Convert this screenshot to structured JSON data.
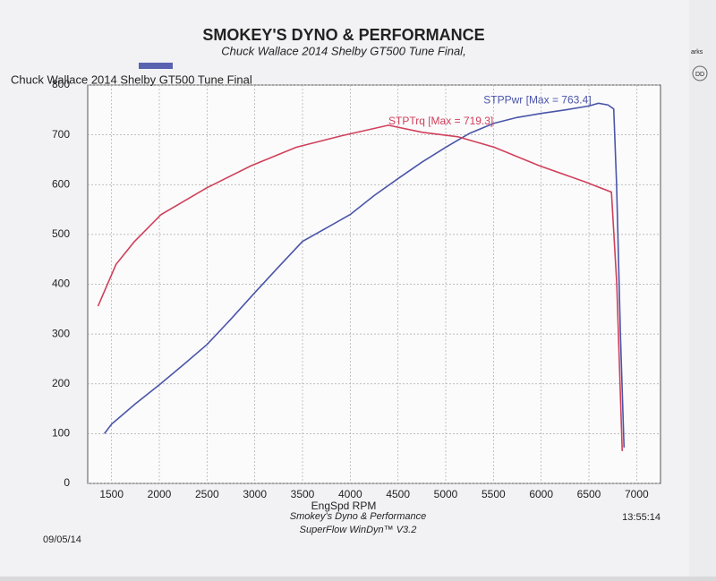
{
  "chart_data": {
    "type": "line",
    "title": "SMOKEY'S DYNO & PERFORMANCE",
    "subtitle": "Chuck Wallace 2014 Shelby GT500 Tune Final,",
    "legend_label": "Chuck Wallace 2014 Shelby GT500 Tune Final",
    "legend_color": "#5a63b0",
    "x_label": "EngSpd RPM",
    "xlim": [
      1250,
      7250
    ],
    "xticks": [
      1500,
      2000,
      2500,
      3000,
      3500,
      4000,
      4500,
      5000,
      5500,
      6000,
      6500,
      7000
    ],
    "ylim": [
      0,
      800
    ],
    "yticks": [
      0,
      100,
      200,
      300,
      400,
      500,
      600,
      700,
      800
    ],
    "grid": true,
    "series": [
      {
        "name": "STPPwr [Max = 763.4]",
        "color": "#4a55a8",
        "x": [
          1425,
          1500,
          1750,
          2000,
          2250,
          2500,
          2750,
          3000,
          3250,
          3500,
          3750,
          4000,
          4250,
          4500,
          4750,
          5000,
          5250,
          5500,
          5750,
          6000,
          6250,
          6500,
          6600,
          6700,
          6760,
          6790,
          6830,
          6868
        ],
        "values": [
          100,
          119,
          160,
          198,
          238,
          279,
          330,
          383,
          435,
          486,
          513,
          540,
          578,
          612,
          645,
          675,
          703,
          723,
          735,
          743,
          750,
          758,
          763.4,
          760,
          752,
          600,
          300,
          72
        ]
      },
      {
        "name": "STPTrq [Max = 719.3]",
        "color": "#d0405a",
        "x": [
          1358,
          1547,
          1736,
          2019,
          2491,
          2962,
          3434,
          3906,
          4400,
          4755,
          5132,
          5509,
          5981,
          6453,
          6736,
          6792,
          6849
        ],
        "values": [
          356,
          440,
          485,
          540,
          593,
          638,
          675,
          698,
          719.3,
          705,
          696,
          675,
          638,
          606,
          585,
          400,
          65
        ]
      }
    ],
    "footer": [
      "Smokey's Dyno & Performance",
      "SuperFlow WinDyn™ V3.2"
    ],
    "date": "09/05/14",
    "time": "13:55:14"
  },
  "sidebar": {
    "text": "arks",
    "badge": "DD"
  }
}
